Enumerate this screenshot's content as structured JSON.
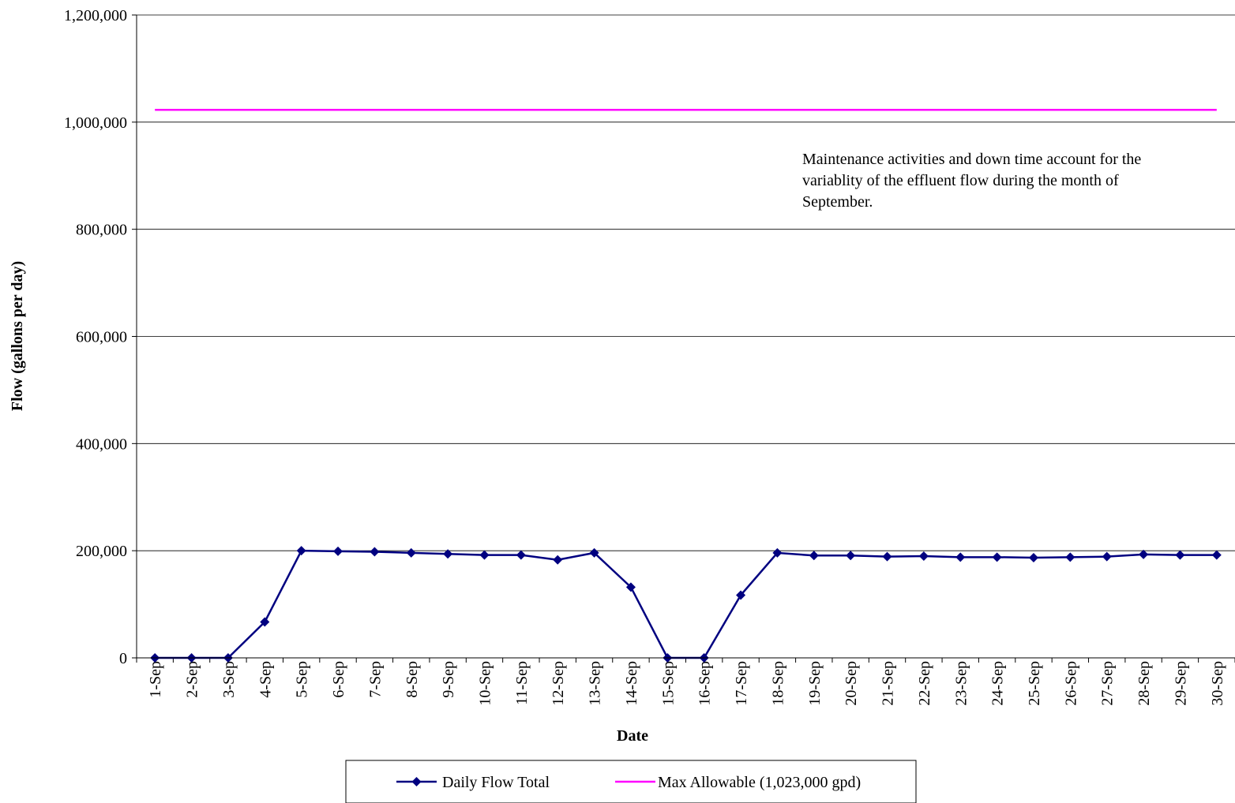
{
  "chart_data": {
    "type": "line",
    "xlabel": "Date",
    "ylabel": "Flow (gallons per day)",
    "categories": [
      "1-Sep",
      "2-Sep",
      "3-Sep",
      "4-Sep",
      "5-Sep",
      "6-Sep",
      "7-Sep",
      "8-Sep",
      "9-Sep",
      "10-Sep",
      "11-Sep",
      "12-Sep",
      "13-Sep",
      "14-Sep",
      "15-Sep",
      "16-Sep",
      "17-Sep",
      "18-Sep",
      "19-Sep",
      "20-Sep",
      "21-Sep",
      "22-Sep",
      "23-Sep",
      "24-Sep",
      "25-Sep",
      "26-Sep",
      "27-Sep",
      "28-Sep",
      "29-Sep",
      "30-Sep"
    ],
    "series": [
      {
        "name": "Daily Flow Total",
        "color": "#000080",
        "marker": "diamond",
        "values": [
          0,
          0,
          0,
          67000,
          200000,
          199000,
          198000,
          196000,
          194000,
          192000,
          192000,
          183000,
          196000,
          132000,
          0,
          0,
          117000,
          196000,
          191000,
          191000,
          189000,
          190000,
          188000,
          188000,
          187000,
          188000,
          189000,
          193000,
          192000,
          192000
        ]
      },
      {
        "name": "Max Allowable (1,023,000 gpd)",
        "color": "#FF00FF",
        "marker": "none",
        "values": [
          1023000,
          1023000,
          1023000,
          1023000,
          1023000,
          1023000,
          1023000,
          1023000,
          1023000,
          1023000,
          1023000,
          1023000,
          1023000,
          1023000,
          1023000,
          1023000,
          1023000,
          1023000,
          1023000,
          1023000,
          1023000,
          1023000,
          1023000,
          1023000,
          1023000,
          1023000,
          1023000,
          1023000,
          1023000,
          1023000
        ]
      }
    ],
    "ylim": [
      0,
      1200000
    ],
    "yticks": [
      0,
      200000,
      400000,
      600000,
      800000,
      1000000,
      1200000
    ],
    "ytick_labels": [
      "0",
      "200,000",
      "400,000",
      "600,000",
      "800,000",
      "1,000,000",
      "1,200,000"
    ],
    "grid": true,
    "legend_position": "bottom",
    "annotation_lines": [
      "Maintenance activities and down time account for the",
      "variablity of the effluent flow during the month of",
      "September."
    ]
  }
}
